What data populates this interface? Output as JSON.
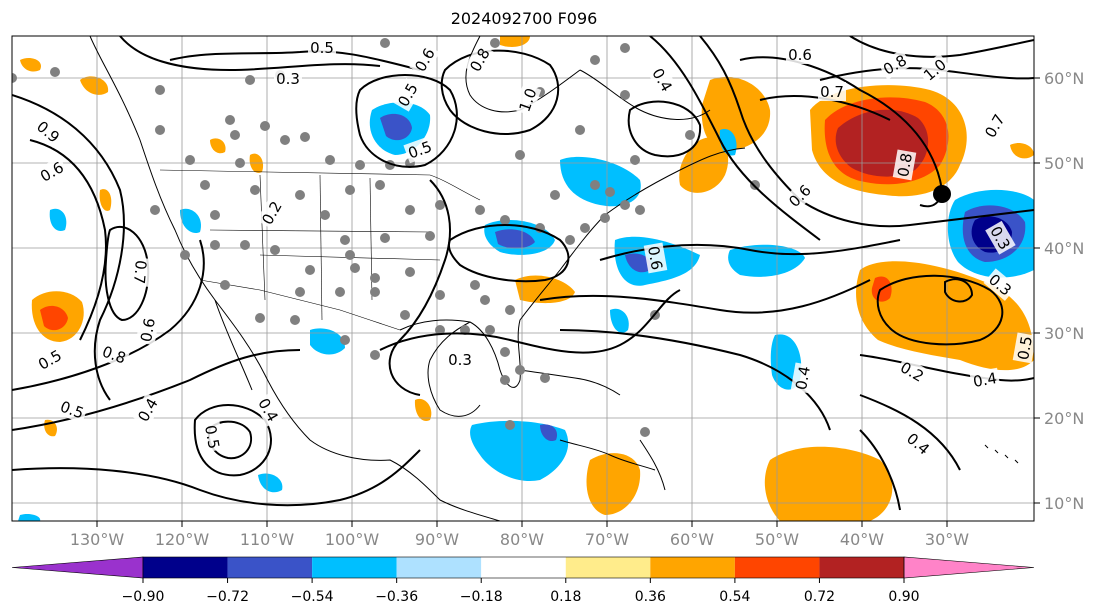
{
  "title": "2024092700 F096",
  "map": {
    "lon_ticks": [
      "130°W",
      "120°W",
      "110°W",
      "100°W",
      "90°W",
      "80°W",
      "70°W",
      "60°W",
      "50°W",
      "40°W",
      "30°W"
    ],
    "lat_ticks": [
      "60°N",
      "50°N",
      "40°N",
      "30°N",
      "20°N",
      "10°N"
    ],
    "contour_labels": [
      {
        "text": "0.5"
      },
      {
        "text": "0.3"
      },
      {
        "text": "0.6"
      },
      {
        "text": "0.8"
      },
      {
        "text": "1.0"
      },
      {
        "text": "0.4"
      },
      {
        "text": "0.6"
      },
      {
        "text": "0.7"
      },
      {
        "text": "0.8"
      },
      {
        "text": "1.0"
      },
      {
        "text": "0.7"
      },
      {
        "text": "0.5"
      },
      {
        "text": "0.2"
      },
      {
        "text": "0.6"
      },
      {
        "text": "0.8"
      },
      {
        "text": "0.6"
      },
      {
        "text": "0.3"
      },
      {
        "text": "0.6"
      },
      {
        "text": "0.5"
      },
      {
        "text": "0.7"
      },
      {
        "text": "0.8"
      },
      {
        "text": "0.6"
      },
      {
        "text": "0.5"
      },
      {
        "text": "0.4"
      },
      {
        "text": "0.4"
      },
      {
        "text": "0.5"
      },
      {
        "text": "0.3"
      },
      {
        "text": "0.2"
      },
      {
        "text": "0.4"
      },
      {
        "text": "0.4"
      },
      {
        "text": "0.5"
      },
      {
        "text": "0.4"
      },
      {
        "text": "0.9"
      },
      {
        "text": "0.3"
      },
      {
        "text": "0.5"
      }
    ]
  },
  "colorbar": {
    "ticks": [
      "−0.90",
      "−0.72",
      "−0.54",
      "−0.36",
      "−0.18",
      "0.18",
      "0.36",
      "0.54",
      "0.72",
      "0.90"
    ],
    "colors": [
      "#9a32cd",
      "#00008b",
      "#3a53c8",
      "#00bfff",
      "#aee1ff",
      "#ffffff",
      "#ffec8b",
      "#ffa500",
      "#ff4500",
      "#b22222",
      "#ff83c8"
    ]
  }
}
